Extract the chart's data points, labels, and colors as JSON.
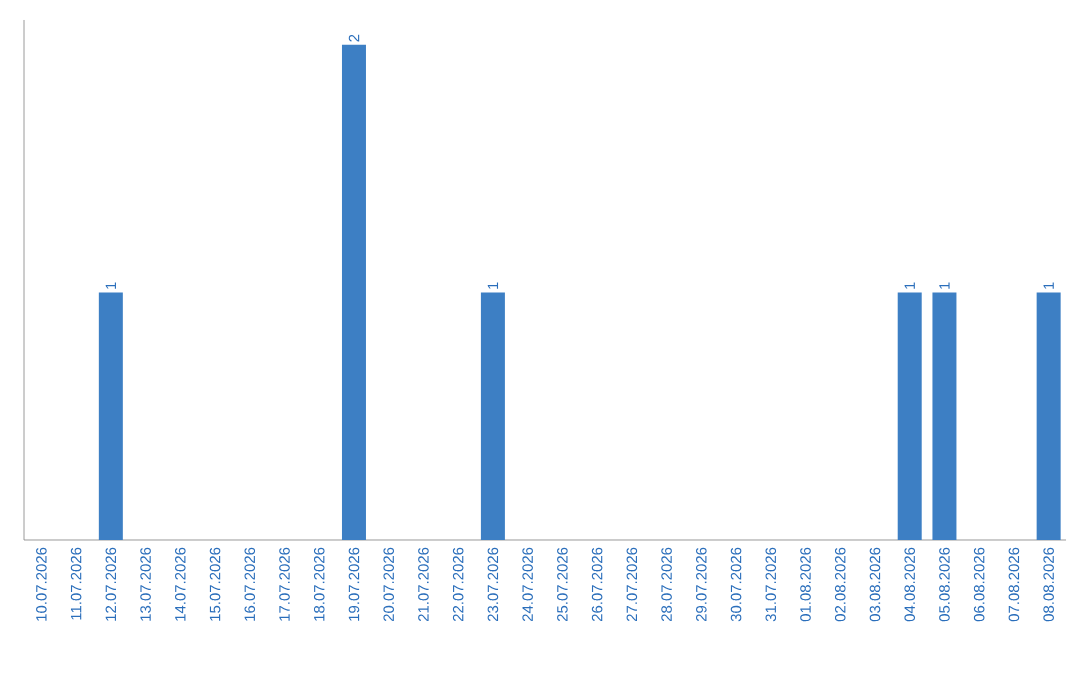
{
  "chart_data": {
    "type": "bar",
    "categories": [
      "10.07.2026",
      "11.07.2026",
      "12.07.2026",
      "13.07.2026",
      "14.07.2026",
      "15.07.2026",
      "16.07.2026",
      "17.07.2026",
      "18.07.2026",
      "19.07.2026",
      "20.07.2026",
      "21.07.2026",
      "22.07.2026",
      "23.07.2026",
      "24.07.2026",
      "25.07.2026",
      "26.07.2026",
      "27.07.2026",
      "28.07.2026",
      "29.07.2026",
      "30.07.2026",
      "31.07.2026",
      "01.08.2026",
      "02.08.2026",
      "03.08.2026",
      "04.08.2026",
      "05.08.2026",
      "06.08.2026",
      "07.08.2026",
      "08.08.2026"
    ],
    "values": [
      0,
      0,
      1,
      0,
      0,
      0,
      0,
      0,
      0,
      2,
      0,
      0,
      0,
      1,
      0,
      0,
      0,
      0,
      0,
      0,
      0,
      0,
      0,
      0,
      0,
      1,
      1,
      0,
      0,
      1
    ],
    "value_labels": [
      null,
      null,
      "1",
      null,
      null,
      null,
      null,
      null,
      null,
      "2",
      null,
      null,
      null,
      "1",
      null,
      null,
      null,
      null,
      null,
      null,
      null,
      null,
      null,
      null,
      null,
      "1",
      "1",
      null,
      null,
      "1"
    ],
    "color": "#3d7fc4",
    "tick_labels": "x"
  }
}
